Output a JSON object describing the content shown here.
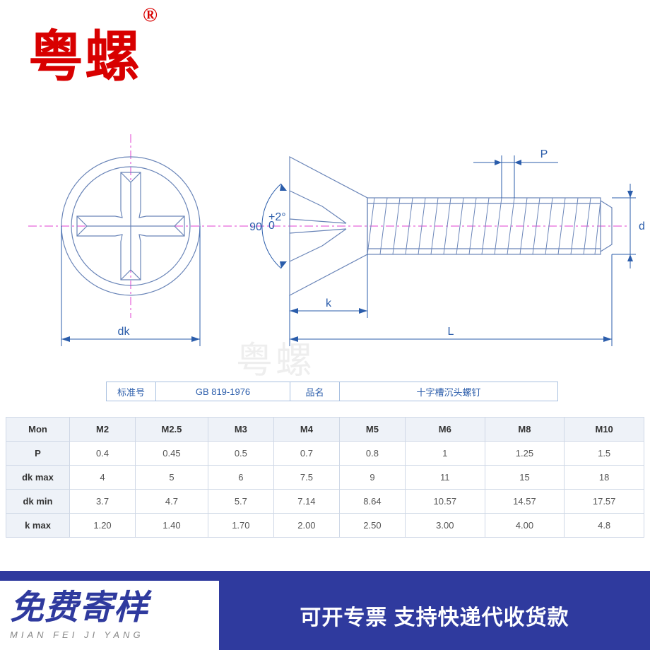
{
  "brand": {
    "name": "粤螺",
    "registered": "®"
  },
  "watermark": "粤螺",
  "diagram": {
    "angle_label": "90",
    "angle_tol": "+2°\n 0",
    "dim_dk": "dk",
    "dim_k": "k",
    "dim_L": "L",
    "dim_P": "P",
    "dim_d": "d",
    "colors": {
      "dim": "#2b5dab",
      "center": "#e040d0",
      "outline": "#6a85b8"
    }
  },
  "info": {
    "standard_label": "标准号",
    "standard_value": "GB 819-1976",
    "name_label": "品名",
    "name_value": "十字槽沉头螺钉"
  },
  "table": {
    "header": [
      "Mon",
      "M2",
      "M2.5",
      "M3",
      "M4",
      "M5",
      "M6",
      "M8",
      "M10"
    ],
    "rows": [
      {
        "label": "P",
        "cells": [
          "0.4",
          "0.45",
          "0.5",
          "0.7",
          "0.8",
          "1",
          "1.25",
          "1.5"
        ]
      },
      {
        "label": "dk max",
        "cells": [
          "4",
          "5",
          "6",
          "7.5",
          "9",
          "11",
          "15",
          "18"
        ]
      },
      {
        "label": "dk min",
        "cells": [
          "3.7",
          "4.7",
          "5.7",
          "7.14",
          "8.64",
          "10.57",
          "14.57",
          "17.57"
        ]
      },
      {
        "label": "k max",
        "cells": [
          "1.20",
          "1.40",
          "1.70",
          "2.00",
          "2.50",
          "3.00",
          "4.00",
          "4.8"
        ]
      }
    ]
  },
  "banner": {
    "left_big": "免费寄样",
    "left_small": "MIAN FEI JI YANG",
    "right": "可开专票 支持快递代收货款"
  }
}
